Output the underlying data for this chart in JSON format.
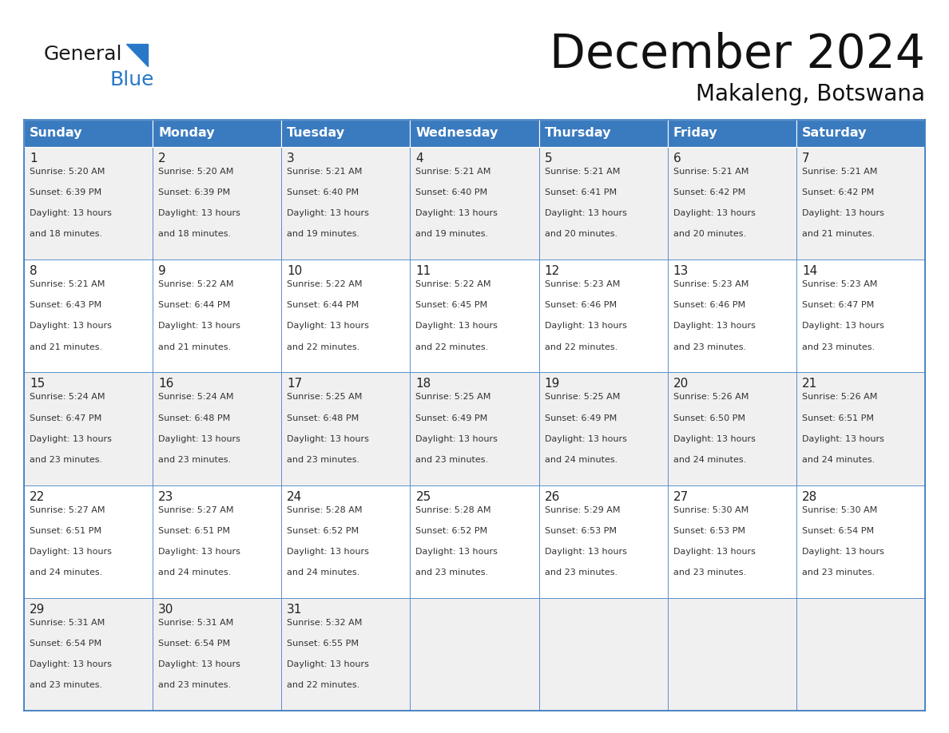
{
  "title": "December 2024",
  "subtitle": "Makaleng, Botswana",
  "days_of_week": [
    "Sunday",
    "Monday",
    "Tuesday",
    "Wednesday",
    "Thursday",
    "Friday",
    "Saturday"
  ],
  "header_bg": "#3a7abf",
  "header_text_color": "#ffffff",
  "cell_bg_odd": "#f0f0f0",
  "cell_bg_even": "#ffffff",
  "cell_bg_last": "#f0f0f0",
  "day_num_color": "#222222",
  "detail_text_color": "#333333",
  "grid_line_color": "#3a7abf",
  "title_color": "#111111",
  "subtitle_color": "#111111",
  "logo_general_color": "#1a1a1a",
  "logo_blue_color": "#2878c8",
  "calendar_data": [
    {
      "day": 1,
      "sunrise": "5:20 AM",
      "sunset": "6:39 PM",
      "daylight_hours": 13,
      "daylight_minutes": 18
    },
    {
      "day": 2,
      "sunrise": "5:20 AM",
      "sunset": "6:39 PM",
      "daylight_hours": 13,
      "daylight_minutes": 18
    },
    {
      "day": 3,
      "sunrise": "5:21 AM",
      "sunset": "6:40 PM",
      "daylight_hours": 13,
      "daylight_minutes": 19
    },
    {
      "day": 4,
      "sunrise": "5:21 AM",
      "sunset": "6:40 PM",
      "daylight_hours": 13,
      "daylight_minutes": 19
    },
    {
      "day": 5,
      "sunrise": "5:21 AM",
      "sunset": "6:41 PM",
      "daylight_hours": 13,
      "daylight_minutes": 20
    },
    {
      "day": 6,
      "sunrise": "5:21 AM",
      "sunset": "6:42 PM",
      "daylight_hours": 13,
      "daylight_minutes": 20
    },
    {
      "day": 7,
      "sunrise": "5:21 AM",
      "sunset": "6:42 PM",
      "daylight_hours": 13,
      "daylight_minutes": 21
    },
    {
      "day": 8,
      "sunrise": "5:21 AM",
      "sunset": "6:43 PM",
      "daylight_hours": 13,
      "daylight_minutes": 21
    },
    {
      "day": 9,
      "sunrise": "5:22 AM",
      "sunset": "6:44 PM",
      "daylight_hours": 13,
      "daylight_minutes": 21
    },
    {
      "day": 10,
      "sunrise": "5:22 AM",
      "sunset": "6:44 PM",
      "daylight_hours": 13,
      "daylight_minutes": 22
    },
    {
      "day": 11,
      "sunrise": "5:22 AM",
      "sunset": "6:45 PM",
      "daylight_hours": 13,
      "daylight_minutes": 22
    },
    {
      "day": 12,
      "sunrise": "5:23 AM",
      "sunset": "6:46 PM",
      "daylight_hours": 13,
      "daylight_minutes": 22
    },
    {
      "day": 13,
      "sunrise": "5:23 AM",
      "sunset": "6:46 PM",
      "daylight_hours": 13,
      "daylight_minutes": 23
    },
    {
      "day": 14,
      "sunrise": "5:23 AM",
      "sunset": "6:47 PM",
      "daylight_hours": 13,
      "daylight_minutes": 23
    },
    {
      "day": 15,
      "sunrise": "5:24 AM",
      "sunset": "6:47 PM",
      "daylight_hours": 13,
      "daylight_minutes": 23
    },
    {
      "day": 16,
      "sunrise": "5:24 AM",
      "sunset": "6:48 PM",
      "daylight_hours": 13,
      "daylight_minutes": 23
    },
    {
      "day": 17,
      "sunrise": "5:25 AM",
      "sunset": "6:48 PM",
      "daylight_hours": 13,
      "daylight_minutes": 23
    },
    {
      "day": 18,
      "sunrise": "5:25 AM",
      "sunset": "6:49 PM",
      "daylight_hours": 13,
      "daylight_minutes": 23
    },
    {
      "day": 19,
      "sunrise": "5:25 AM",
      "sunset": "6:49 PM",
      "daylight_hours": 13,
      "daylight_minutes": 24
    },
    {
      "day": 20,
      "sunrise": "5:26 AM",
      "sunset": "6:50 PM",
      "daylight_hours": 13,
      "daylight_minutes": 24
    },
    {
      "day": 21,
      "sunrise": "5:26 AM",
      "sunset": "6:51 PM",
      "daylight_hours": 13,
      "daylight_minutes": 24
    },
    {
      "day": 22,
      "sunrise": "5:27 AM",
      "sunset": "6:51 PM",
      "daylight_hours": 13,
      "daylight_minutes": 24
    },
    {
      "day": 23,
      "sunrise": "5:27 AM",
      "sunset": "6:51 PM",
      "daylight_hours": 13,
      "daylight_minutes": 24
    },
    {
      "day": 24,
      "sunrise": "5:28 AM",
      "sunset": "6:52 PM",
      "daylight_hours": 13,
      "daylight_minutes": 24
    },
    {
      "day": 25,
      "sunrise": "5:28 AM",
      "sunset": "6:52 PM",
      "daylight_hours": 13,
      "daylight_minutes": 23
    },
    {
      "day": 26,
      "sunrise": "5:29 AM",
      "sunset": "6:53 PM",
      "daylight_hours": 13,
      "daylight_minutes": 23
    },
    {
      "day": 27,
      "sunrise": "5:30 AM",
      "sunset": "6:53 PM",
      "daylight_hours": 13,
      "daylight_minutes": 23
    },
    {
      "day": 28,
      "sunrise": "5:30 AM",
      "sunset": "6:54 PM",
      "daylight_hours": 13,
      "daylight_minutes": 23
    },
    {
      "day": 29,
      "sunrise": "5:31 AM",
      "sunset": "6:54 PM",
      "daylight_hours": 13,
      "daylight_minutes": 23
    },
    {
      "day": 30,
      "sunrise": "5:31 AM",
      "sunset": "6:54 PM",
      "daylight_hours": 13,
      "daylight_minutes": 23
    },
    {
      "day": 31,
      "sunrise": "5:32 AM",
      "sunset": "6:55 PM",
      "daylight_hours": 13,
      "daylight_minutes": 22
    }
  ],
  "figsize": [
    11.88,
    9.18
  ],
  "dpi": 100
}
